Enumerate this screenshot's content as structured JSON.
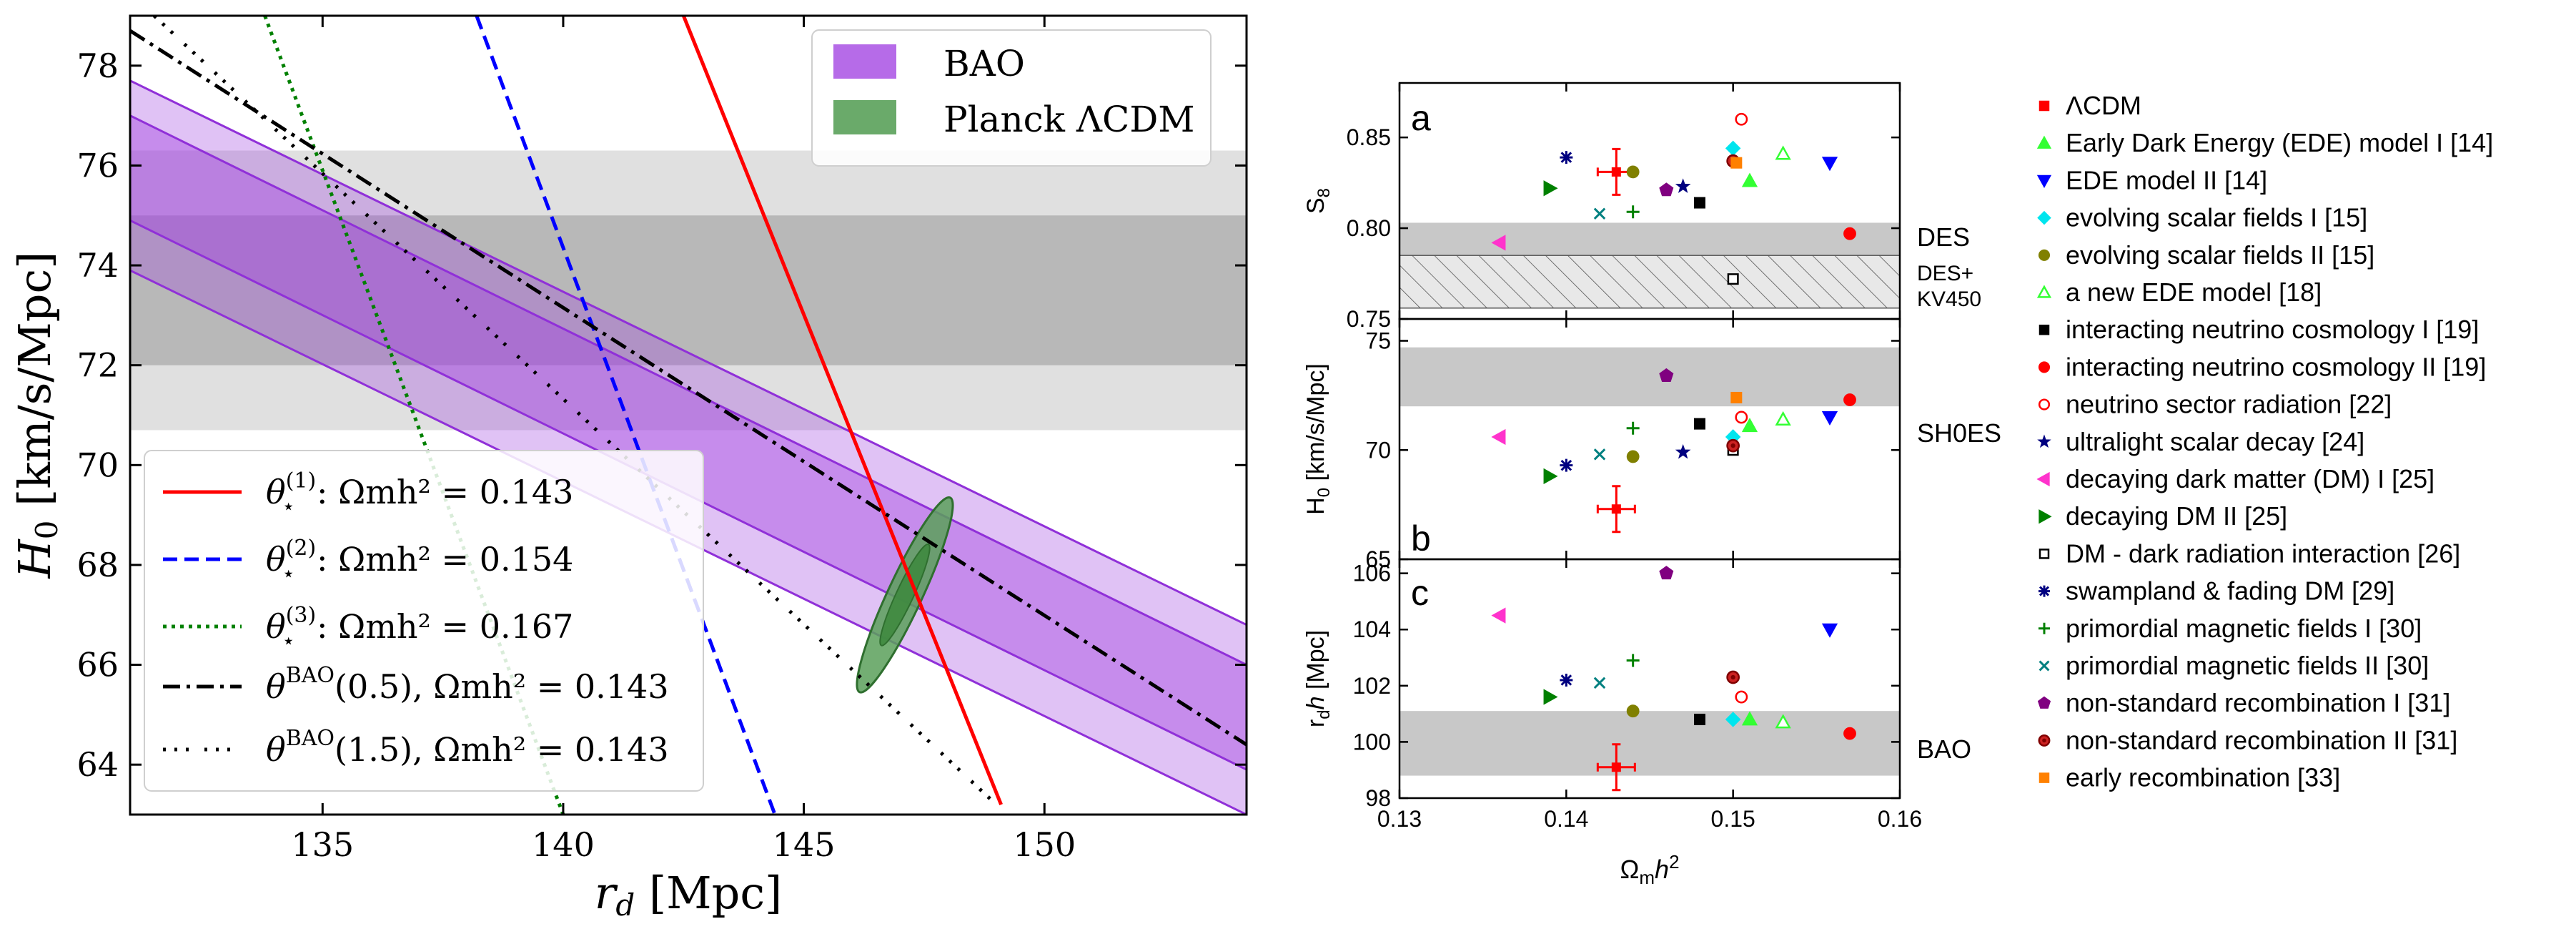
{
  "colors": {
    "bao_band": "#a040e0",
    "planck": "#3a8a3a",
    "theta1": "#ff0000",
    "theta2": "#0000ff",
    "theta3": "#008000",
    "sh0es_inner": "#b8b8b8",
    "sh0es_outer": "#e0e0e0"
  },
  "chart_data": [
    {
      "type": "line",
      "title": "",
      "xlabel": "r_d [Mpc]",
      "ylabel": "H_0 [km/s/Mpc]",
      "xlim": [
        131,
        154.2
      ],
      "ylim": [
        63,
        79
      ],
      "x_ticks": [
        135,
        140,
        145,
        150
      ],
      "y_ticks": [
        64,
        66,
        68,
        70,
        72,
        74,
        76,
        78
      ],
      "sh0es_bands": {
        "inner": [
          72.0,
          75.0
        ],
        "outer": [
          70.7,
          76.3
        ]
      },
      "bao_band": {
        "rd": [
          131,
          154.2
        ],
        "inner_upper": [
          77.0,
          66.0
        ],
        "inner_lower": [
          74.9,
          63.9
        ],
        "outer_upper": [
          77.7,
          66.8
        ],
        "outer_lower": [
          73.9,
          63.0
        ]
      },
      "planck_ellipse": {
        "rd": 147.1,
        "H0": 67.4,
        "label": "Planck ΛCDM"
      },
      "series": [
        {
          "name": "θ*(1): Ωm h² = 0.143",
          "label_main": "θ",
          "label_sub": "⋆",
          "label_sup": "(1)",
          "label_rest": ": Ωmh² = 0.143",
          "style": "solid",
          "x": [
            142.5,
            149.1
          ],
          "y": [
            79,
            63.2
          ]
        },
        {
          "name": "θ*(2): Ωm h² = 0.154",
          "label_main": "θ",
          "label_sub": "⋆",
          "label_sup": "(2)",
          "label_rest": ": Ωmh² = 0.154",
          "style": "dashed",
          "x": [
            138.2,
            144.4
          ],
          "y": [
            79,
            63
          ]
        },
        {
          "name": "θ*(3): Ωm h² = 0.167",
          "label_main": "θ",
          "label_sub": "⋆",
          "label_sup": "(3)",
          "label_rest": ": Ωmh² = 0.167",
          "style": "dotted",
          "x": [
            133.8,
            140.0
          ],
          "y": [
            79,
            63
          ]
        },
        {
          "name": "θBAO(0.5), Ωm h² = 0.143",
          "label_main": "θ",
          "label_sub": "",
          "label_sup": "BAO",
          "label_rest": "(0.5), Ωmh² = 0.143",
          "style": "dashdot",
          "x": [
            131,
            154.2
          ],
          "y": [
            78.7,
            64.4
          ]
        },
        {
          "name": "θBAO(1.5), Ωm h² = 0.143",
          "label_main": "θ",
          "label_sub": "",
          "label_sup": "BAO",
          "label_rest": "(1.5), Ωmh² = 0.143",
          "style": "dashdotdot",
          "x": [
            131.5,
            149.0
          ],
          "y": [
            79,
            63.2
          ]
        }
      ],
      "legend_top": [
        {
          "label": "BAO",
          "color": "#b66be8"
        },
        {
          "label": "Planck ΛCDM",
          "color": "#6aaa6a"
        }
      ]
    },
    {
      "type": "scatter",
      "xlabel": "Ωmh²",
      "xlim": [
        0.13,
        0.16
      ],
      "x_ticks": [
        "0.13",
        "0.14",
        "0.15",
        "0.16"
      ],
      "panels": [
        {
          "id": "a",
          "ylabel": "S8",
          "ylim": [
            0.75,
            0.88
          ],
          "y_ticks": [
            "0.75",
            "0.80",
            "0.85"
          ],
          "bands": [
            {
              "name": "DES",
              "range": [
                0.785,
                0.803
              ],
              "pattern": "solid"
            },
            {
              "name": "DES+ KV450",
              "range": [
                0.756,
                0.785
              ],
              "pattern": "hatch"
            }
          ],
          "band_labels": [
            "DES",
            "DES+",
            "KV450"
          ]
        },
        {
          "id": "b",
          "ylabel": "H0 [km/s/Mpc]",
          "ylim": [
            65,
            76
          ],
          "y_ticks": [
            "65",
            "70",
            "75"
          ],
          "bands": [
            {
              "name": "SH0ES",
              "range": [
                72.0,
                74.7
              ],
              "pattern": "solid"
            }
          ],
          "band_labels": [
            "SH0ES"
          ]
        },
        {
          "id": "c",
          "ylabel": "rd h [Mpc]",
          "ylim": [
            98,
            106.5
          ],
          "y_ticks": [
            "98",
            "100",
            "102",
            "104",
            "106"
          ],
          "bands": [
            {
              "name": "BAO",
              "range": [
                98.8,
                101.1
              ],
              "pattern": "solid"
            }
          ],
          "band_labels": [
            "BAO"
          ]
        }
      ],
      "models": [
        {
          "name": "ΛCDM",
          "marker": "square",
          "color": "#ff0000",
          "filled": true,
          "x": 0.143,
          "S8": 0.831,
          "H0": 67.3,
          "rdh": 99.1
        },
        {
          "name": "Early Dark Energy (EDE) model I [14]",
          "marker": "tri-up",
          "color": "#33ff33",
          "filled": true,
          "x": 0.151,
          "S8": 0.826,
          "H0": 71.1,
          "rdh": 100.8
        },
        {
          "name": "EDE model II [14]",
          "marker": "tri-down",
          "color": "#0000ff",
          "filled": true,
          "x": 0.1558,
          "S8": 0.836,
          "H0": 71.5,
          "rdh": 104.0
        },
        {
          "name": "evolving scalar fields I  [15]",
          "marker": "diamond",
          "color": "#00e5ee",
          "filled": true,
          "x": 0.15,
          "S8": 0.844,
          "H0": 70.6,
          "rdh": 100.8
        },
        {
          "name": "evolving scalar fields II [15]",
          "marker": "circle",
          "color": "#808000",
          "filled": true,
          "x": 0.144,
          "S8": 0.831,
          "H0": 69.7,
          "rdh": 101.1
        },
        {
          "name": "a new EDE model [18]",
          "marker": "tri-up",
          "color": "#33ff33",
          "filled": false,
          "x": 0.153,
          "S8": 0.841,
          "H0": 71.4,
          "rdh": 100.7
        },
        {
          "name": "interacting neutrino cosmology I  [19]",
          "marker": "square",
          "color": "#000000",
          "filled": true,
          "x": 0.148,
          "S8": 0.814,
          "H0": 71.2,
          "rdh": 100.8
        },
        {
          "name": "interacting neutrino cosmology II [19]",
          "marker": "circle",
          "color": "#ff0000",
          "filled": true,
          "x": 0.157,
          "S8": 0.797,
          "H0": 72.3,
          "rdh": 100.3
        },
        {
          "name": "neutrino sector radiation [22]",
          "marker": "circle",
          "color": "#ff0000",
          "filled": false,
          "x": 0.1505,
          "S8": 0.86,
          "H0": 71.5,
          "rdh": 101.6
        },
        {
          "name": "ultralight scalar decay [24]",
          "marker": "star",
          "color": "#000080",
          "filled": true,
          "x": 0.147,
          "S8": 0.823,
          "H0": 69.9,
          "rdh": null
        },
        {
          "name": "decaying dark matter (DM) I [25]",
          "marker": "tri-left",
          "color": "#ff33cc",
          "filled": true,
          "x": 0.136,
          "S8": 0.792,
          "H0": 70.6,
          "rdh": 104.5
        },
        {
          "name": "decaying DM II [25]",
          "marker": "tri-right",
          "color": "#008000",
          "filled": true,
          "x": 0.139,
          "S8": 0.822,
          "H0": 68.8,
          "rdh": 101.6
        },
        {
          "name": "DM - dark radiation interaction [26]",
          "marker": "square",
          "color": "#000000",
          "filled": false,
          "x": 0.15,
          "S8": 0.772,
          "H0": 70.0,
          "rdh": null
        },
        {
          "name": "swampland & fading DM [29]",
          "marker": "asterisk",
          "color": "#000080",
          "filled": true,
          "x": 0.14,
          "S8": 0.839,
          "H0": 69.3,
          "rdh": 102.2
        },
        {
          "name": "primordial magnetic fields I  [30]",
          "marker": "plus",
          "color": "#008000",
          "filled": true,
          "x": 0.144,
          "S8": 0.809,
          "H0": 71.0,
          "rdh": 102.9
        },
        {
          "name": "primordial magnetic fields II [30]",
          "marker": "cross",
          "color": "#008080",
          "filled": true,
          "x": 0.142,
          "S8": 0.808,
          "H0": 69.8,
          "rdh": 102.1
        },
        {
          "name": "non-standard recombination I  [31]",
          "marker": "pentagon",
          "color": "#800080",
          "filled": true,
          "x": 0.146,
          "S8": 0.821,
          "H0": 73.4,
          "rdh": 106.0
        },
        {
          "name": "non-standard recombination II [31]",
          "marker": "circle-dot",
          "color": "#800000",
          "filled": true,
          "x": 0.15,
          "S8": 0.837,
          "H0": 70.2,
          "rdh": 102.3
        },
        {
          "name": "early recombination [33]",
          "marker": "square",
          "color": "#ff8000",
          "filled": true,
          "x": 0.1502,
          "S8": 0.836,
          "H0": 72.4,
          "rdh": null
        }
      ]
    }
  ]
}
